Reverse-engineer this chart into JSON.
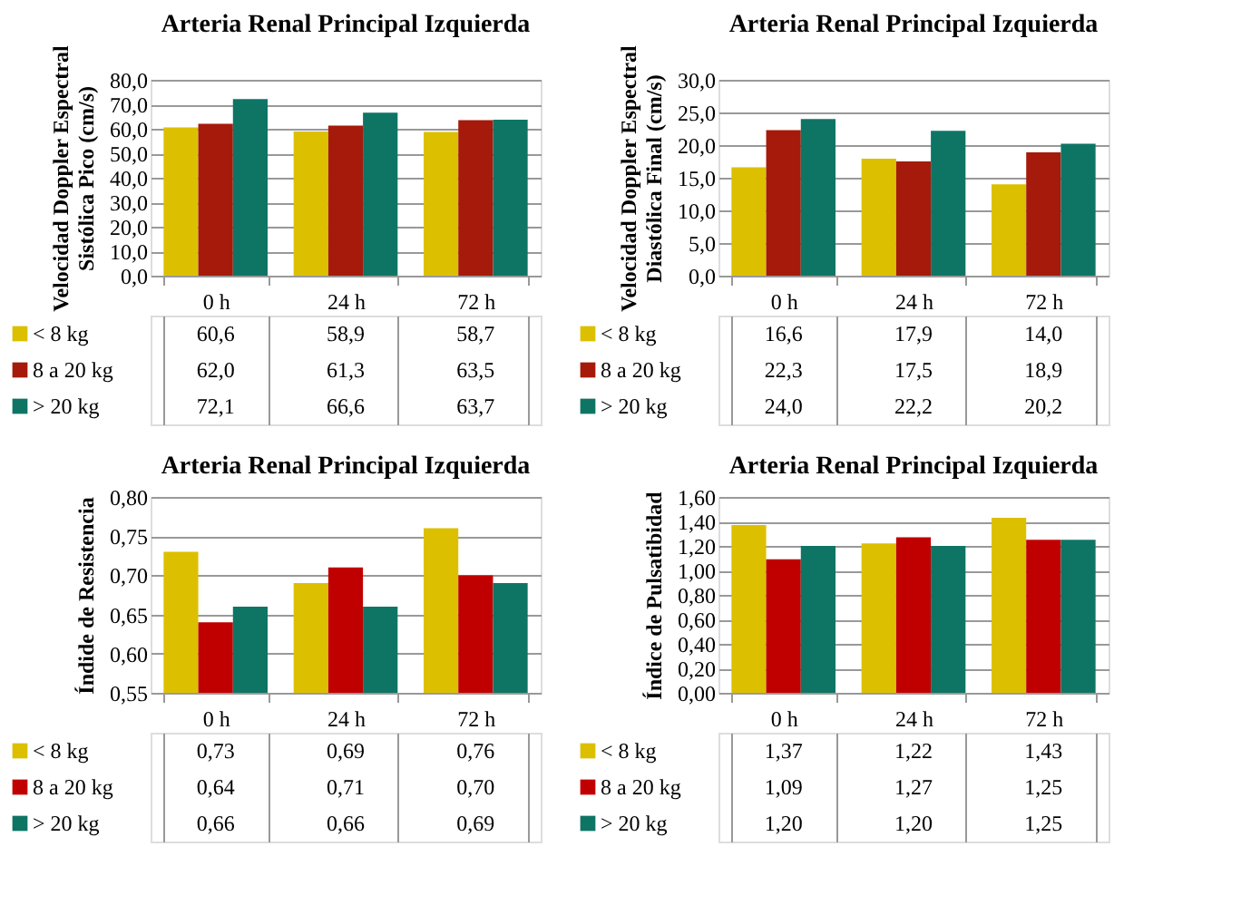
{
  "chart_data": [
    {
      "type": "bar",
      "title": "Arteria Renal Principal Izquierda",
      "ylabel": "Velocidad Doppler Espectral Sistólica Pico (cm/s)",
      "categories": [
        "0 h",
        "24 h",
        "72 h"
      ],
      "series": [
        {
          "name": "< 8 kg",
          "color": "#dcc000",
          "values": [
            60.6,
            58.9,
            58.7
          ],
          "value_labels": [
            "60,6",
            "58,9",
            "58,7"
          ]
        },
        {
          "name": "8 a 20 kg",
          "color": "#a51a0a",
          "values": [
            62.0,
            61.3,
            63.5
          ],
          "value_labels": [
            "62,0",
            "61,3",
            "63,5"
          ]
        },
        {
          "name": "> 20 kg",
          "color": "#0e7565",
          "values": [
            72.1,
            66.6,
            63.7
          ],
          "value_labels": [
            "72,1",
            "66,6",
            "63,7"
          ]
        }
      ],
      "ylim": [
        0,
        80
      ],
      "yticks": [
        {
          "value": 0,
          "label": "0,0"
        },
        {
          "value": 10,
          "label": "10,0"
        },
        {
          "value": 20,
          "label": "20,0"
        },
        {
          "value": 30,
          "label": "30,0"
        },
        {
          "value": 40,
          "label": "40,0"
        },
        {
          "value": 50,
          "label": "50,0"
        },
        {
          "value": 60,
          "label": "60,0"
        },
        {
          "value": 70,
          "label": "70,0"
        },
        {
          "value": 80,
          "label": "80,0"
        }
      ],
      "grid": "y",
      "legend": "bottom"
    },
    {
      "type": "bar",
      "title": "Arteria Renal Principal Izquierda",
      "ylabel": "Velocidad Doppler Espectral Diastólica Final (cm/s)",
      "categories": [
        "0 h",
        "24 h",
        "72 h"
      ],
      "series": [
        {
          "name": "< 8 kg",
          "color": "#dcc000",
          "values": [
            16.6,
            17.9,
            14.0
          ],
          "value_labels": [
            "16,6",
            "17,9",
            "14,0"
          ]
        },
        {
          "name": "8 a 20 kg",
          "color": "#a51a0a",
          "values": [
            22.3,
            17.5,
            18.9
          ],
          "value_labels": [
            "22,3",
            "17,5",
            "18,9"
          ]
        },
        {
          "name": "> 20 kg",
          "color": "#0e7565",
          "values": [
            24.0,
            22.2,
            20.2
          ],
          "value_labels": [
            "24,0",
            "22,2",
            "20,2"
          ]
        }
      ],
      "ylim": [
        0,
        30
      ],
      "yticks": [
        {
          "value": 0,
          "label": "0,0"
        },
        {
          "value": 5,
          "label": "5,0"
        },
        {
          "value": 10,
          "label": "10,0"
        },
        {
          "value": 15,
          "label": "15,0"
        },
        {
          "value": 20,
          "label": "20,0"
        },
        {
          "value": 25,
          "label": "25,0"
        },
        {
          "value": 30,
          "label": "30,0"
        }
      ],
      "grid": "y",
      "legend": "bottom"
    },
    {
      "type": "bar",
      "title": "Arteria Renal Principal Izquierda",
      "ylabel": "Índide de Resistencia",
      "categories": [
        "0 h",
        "24 h",
        "72 h"
      ],
      "series": [
        {
          "name": "< 8 kg",
          "color": "#dcc000",
          "values": [
            0.73,
            0.69,
            0.76
          ],
          "value_labels": [
            "0,73",
            "0,69",
            "0,76"
          ]
        },
        {
          "name": "8 a 20 kg",
          "color": "#c00000",
          "values": [
            0.64,
            0.71,
            0.7
          ],
          "value_labels": [
            "0,64",
            "0,71",
            "0,70"
          ]
        },
        {
          "name": "> 20 kg",
          "color": "#0e7565",
          "values": [
            0.66,
            0.66,
            0.69
          ],
          "value_labels": [
            "0,66",
            "0,66",
            "0,69"
          ]
        }
      ],
      "ylim": [
        0.55,
        0.8
      ],
      "yticks": [
        {
          "value": 0.55,
          "label": "0,55"
        },
        {
          "value": 0.6,
          "label": "0,60"
        },
        {
          "value": 0.65,
          "label": "0,65"
        },
        {
          "value": 0.7,
          "label": "0,70"
        },
        {
          "value": 0.75,
          "label": "0,75"
        },
        {
          "value": 0.8,
          "label": "0,80"
        }
      ],
      "grid": "y",
      "legend": "bottom"
    },
    {
      "type": "bar",
      "title": "Arteria Renal Principal Izquierda",
      "ylabel": "Índice de Pulsatibidad",
      "categories": [
        "0 h",
        "24 h",
        "72 h"
      ],
      "series": [
        {
          "name": "< 8 kg",
          "color": "#dcc000",
          "values": [
            1.37,
            1.22,
            1.43
          ],
          "value_labels": [
            "1,37",
            "1,22",
            "1,43"
          ]
        },
        {
          "name": "8 a 20 kg",
          "color": "#c00000",
          "values": [
            1.09,
            1.27,
            1.25
          ],
          "value_labels": [
            "1,09",
            "1,27",
            "1,25"
          ]
        },
        {
          "name": "> 20 kg",
          "color": "#0e7565",
          "values": [
            1.2,
            1.2,
            1.25
          ],
          "value_labels": [
            "1,20",
            "1,20",
            "1,25"
          ]
        }
      ],
      "ylim": [
        0,
        1.6
      ],
      "yticks": [
        {
          "value": 0,
          "label": "0,00"
        },
        {
          "value": 0.2,
          "label": "0,20"
        },
        {
          "value": 0.4,
          "label": "0,40"
        },
        {
          "value": 0.6,
          "label": "0,60"
        },
        {
          "value": 0.8,
          "label": "0,80"
        },
        {
          "value": 1.0,
          "label": "1,00"
        },
        {
          "value": 1.2,
          "label": "1,20"
        },
        {
          "value": 1.4,
          "label": "1,40"
        },
        {
          "value": 1.6,
          "label": "1,60"
        }
      ],
      "grid": "y",
      "legend": "bottom"
    }
  ]
}
